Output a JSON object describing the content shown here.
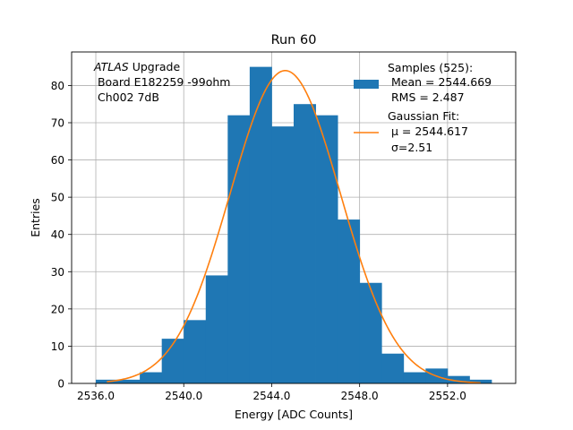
{
  "chart_data": {
    "type": "histogram",
    "title": "Run 60",
    "xlabel": "Energy [ADC Counts]",
    "ylabel": "Entries",
    "xlim": [
      2534.9,
      2555.1
    ],
    "ylim": [
      0,
      89
    ],
    "grid": true,
    "x_ticks": [
      2536.0,
      2540.0,
      2544.0,
      2548.0,
      2552.0
    ],
    "x_tick_labels": [
      "2536.0",
      "2540.0",
      "2544.0",
      "2548.0",
      "2552.0"
    ],
    "y_ticks": [
      0,
      10,
      20,
      30,
      40,
      50,
      60,
      70,
      80
    ],
    "y_tick_labels": [
      "0",
      "10",
      "20",
      "30",
      "40",
      "50",
      "60",
      "70",
      "80"
    ],
    "bins": {
      "edges": [
        2536,
        2537,
        2538,
        2539,
        2540,
        2541,
        2542,
        2543,
        2544,
        2545,
        2546,
        2547,
        2548,
        2549,
        2550,
        2551,
        2552,
        2553,
        2554
      ],
      "counts": [
        1,
        1,
        3,
        12,
        17,
        29,
        72,
        85,
        69,
        75,
        72,
        44,
        27,
        8,
        3,
        4,
        2,
        1
      ],
      "color": "#1f77b4"
    },
    "fit": {
      "mu": 2544.617,
      "sigma": 2.51,
      "peak": 84,
      "x_range": [
        2536.5,
        2553.5
      ],
      "color": "#ff7f0e"
    },
    "annotation": {
      "italic": "ATLAS",
      "line1_rest": " Upgrade",
      "line2": " Board E182259 -99ohm",
      "line3": " Ch002 7dB"
    },
    "legend": {
      "placement": "top-right",
      "entries": [
        {
          "line1": "Samples (525):",
          "line2": " Mean = 2544.669",
          "line3": " RMS = 2.487"
        },
        {
          "line1": "Gaussian Fit:",
          "line2": " μ = 2544.617",
          "line3": " σ=2.51"
        }
      ]
    }
  }
}
